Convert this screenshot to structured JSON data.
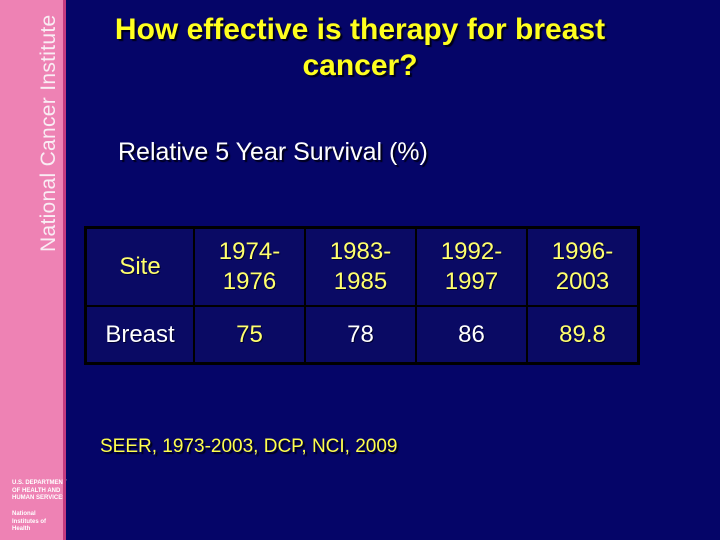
{
  "slide": {
    "title": "How effective is therapy for breast\ncancer?",
    "subtitle": "Relative 5 Year Survival (%)",
    "source": "SEER, 1973-2003, DCP, NCI, 2009"
  },
  "sidebar": {
    "brand": "National Cancer Institute",
    "department": "U.S. DEPARTMENT OF HEALTH AND HUMAN SERVICES",
    "institutes": "National Institutes of Health"
  },
  "table": {
    "header": [
      "Site",
      "1974-\n1976",
      "1983-\n1985",
      "1992-\n1997",
      "1996-\n2003"
    ],
    "row": [
      "Breast",
      "75",
      "78",
      "86",
      "89.8"
    ]
  },
  "chart_data": {
    "type": "table",
    "title": "Relative 5 Year Survival (%)",
    "columns": [
      "Site",
      "1974-1976",
      "1983-1985",
      "1992-1997",
      "1996-2003"
    ],
    "rows": [
      {
        "site": "Breast",
        "values": [
          75,
          78,
          86,
          89.8
        ]
      }
    ],
    "source": "SEER, 1973-2003, DCP, NCI, 2009"
  },
  "colors": {
    "background": "#050568",
    "sidebar_pink": "#ee82b4",
    "divider_magenta": "#c43b80",
    "title_yellow": "#ffff1f",
    "table_yellow": "#ffff6e",
    "footer_yellow": "#ffff4d",
    "white": "#ffffff"
  }
}
